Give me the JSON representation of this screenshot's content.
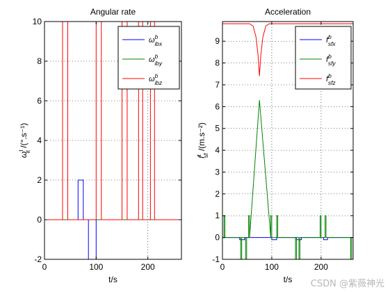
{
  "chart_data": [
    {
      "type": "line",
      "title": "Angular rate",
      "xlabel": "t/s",
      "ylabel": "ω^t_it /(°.s⁻¹)",
      "xlim": [
        0,
        265
      ],
      "ylim": [
        -2,
        10
      ],
      "xticks": [
        0,
        100,
        200
      ],
      "yticks": [
        -2,
        0,
        2,
        4,
        6,
        8,
        10
      ],
      "grid": true,
      "legend_position": "top-right",
      "series": [
        {
          "name": "ω^b_ibx",
          "color": "#0000ff",
          "x": [
            0,
            65,
            65,
            75,
            75,
            85,
            85,
            100,
            100,
            160,
            160,
            265
          ],
          "y": [
            0,
            0,
            2,
            2,
            0,
            0,
            -2,
            -2,
            0,
            0,
            0,
            0
          ]
        },
        {
          "name": "ω^b_iby",
          "color": "#008000",
          "x": [
            0,
            265
          ],
          "y": [
            0,
            0
          ]
        },
        {
          "name": "ω^b_ibz",
          "color": "#ff0000",
          "x": [
            0,
            35,
            35,
            45,
            45,
            100,
            100,
            110,
            110,
            150,
            150,
            160,
            160,
            182,
            182,
            190,
            190,
            205,
            205,
            213,
            213,
            265
          ],
          "y": [
            0,
            0,
            10,
            10,
            0,
            0,
            10,
            10,
            0,
            0,
            10,
            10,
            0,
            0,
            10,
            10,
            0,
            0,
            10,
            10,
            0,
            0
          ]
        }
      ]
    },
    {
      "type": "line",
      "title": "Acceleration",
      "xlabel": "t/s",
      "ylabel": "f^t_sf /(m.s⁻²)",
      "xlim": [
        0,
        265
      ],
      "ylim": [
        -1,
        9.9
      ],
      "xticks": [
        0,
        100,
        200
      ],
      "yticks": [
        -1,
        0,
        1,
        2,
        3,
        4,
        5,
        6,
        7,
        8,
        9
      ],
      "grid": true,
      "legend_position": "top-right",
      "series": [
        {
          "name": "f^b_sfx",
          "color": "#0000ff",
          "x": [
            0,
            35,
            35,
            45,
            45,
            100,
            100,
            110,
            110,
            150,
            150,
            160,
            160,
            205,
            205,
            213,
            213,
            265
          ],
          "y": [
            0,
            0,
            -0.1,
            -0.1,
            0,
            0,
            -0.1,
            -0.1,
            0,
            0,
            -0.1,
            -0.1,
            0,
            0,
            -0.1,
            -0.1,
            0,
            0
          ]
        },
        {
          "name": "f^b_sfy",
          "color": "#008000",
          "x": [
            0,
            3,
            3,
            5,
            5,
            37,
            37,
            39,
            39,
            47,
            47,
            49,
            49,
            53,
            53,
            55,
            55,
            75,
            98,
            98,
            100,
            100,
            110,
            110,
            112,
            112,
            148,
            148,
            150,
            150,
            155,
            155,
            157,
            157,
            198,
            198,
            200,
            200,
            208,
            208,
            210,
            210,
            260,
            260,
            262,
            262,
            265
          ],
          "y": [
            0,
            0,
            1,
            1,
            0,
            0,
            -1,
            -1,
            0,
            0,
            -1,
            -1,
            0,
            0,
            1,
            1,
            0,
            6.3,
            0,
            1,
            1,
            0,
            0,
            1,
            1,
            0,
            0,
            -1,
            -1,
            0,
            0,
            -1,
            -1,
            0,
            0,
            1,
            1,
            0,
            0,
            1,
            1,
            0,
            0,
            -1,
            -1,
            0,
            0
          ]
        },
        {
          "name": "f^b_sfz",
          "color": "#ff0000",
          "x": [
            0,
            55,
            62,
            68,
            72,
            75,
            78,
            82,
            88,
            95,
            265
          ],
          "y": [
            9.8,
            9.8,
            9.7,
            9.2,
            8.4,
            7.4,
            8.4,
            9.2,
            9.7,
            9.8,
            9.8
          ]
        }
      ]
    }
  ],
  "watermark": "CSDN @紫薇神光"
}
